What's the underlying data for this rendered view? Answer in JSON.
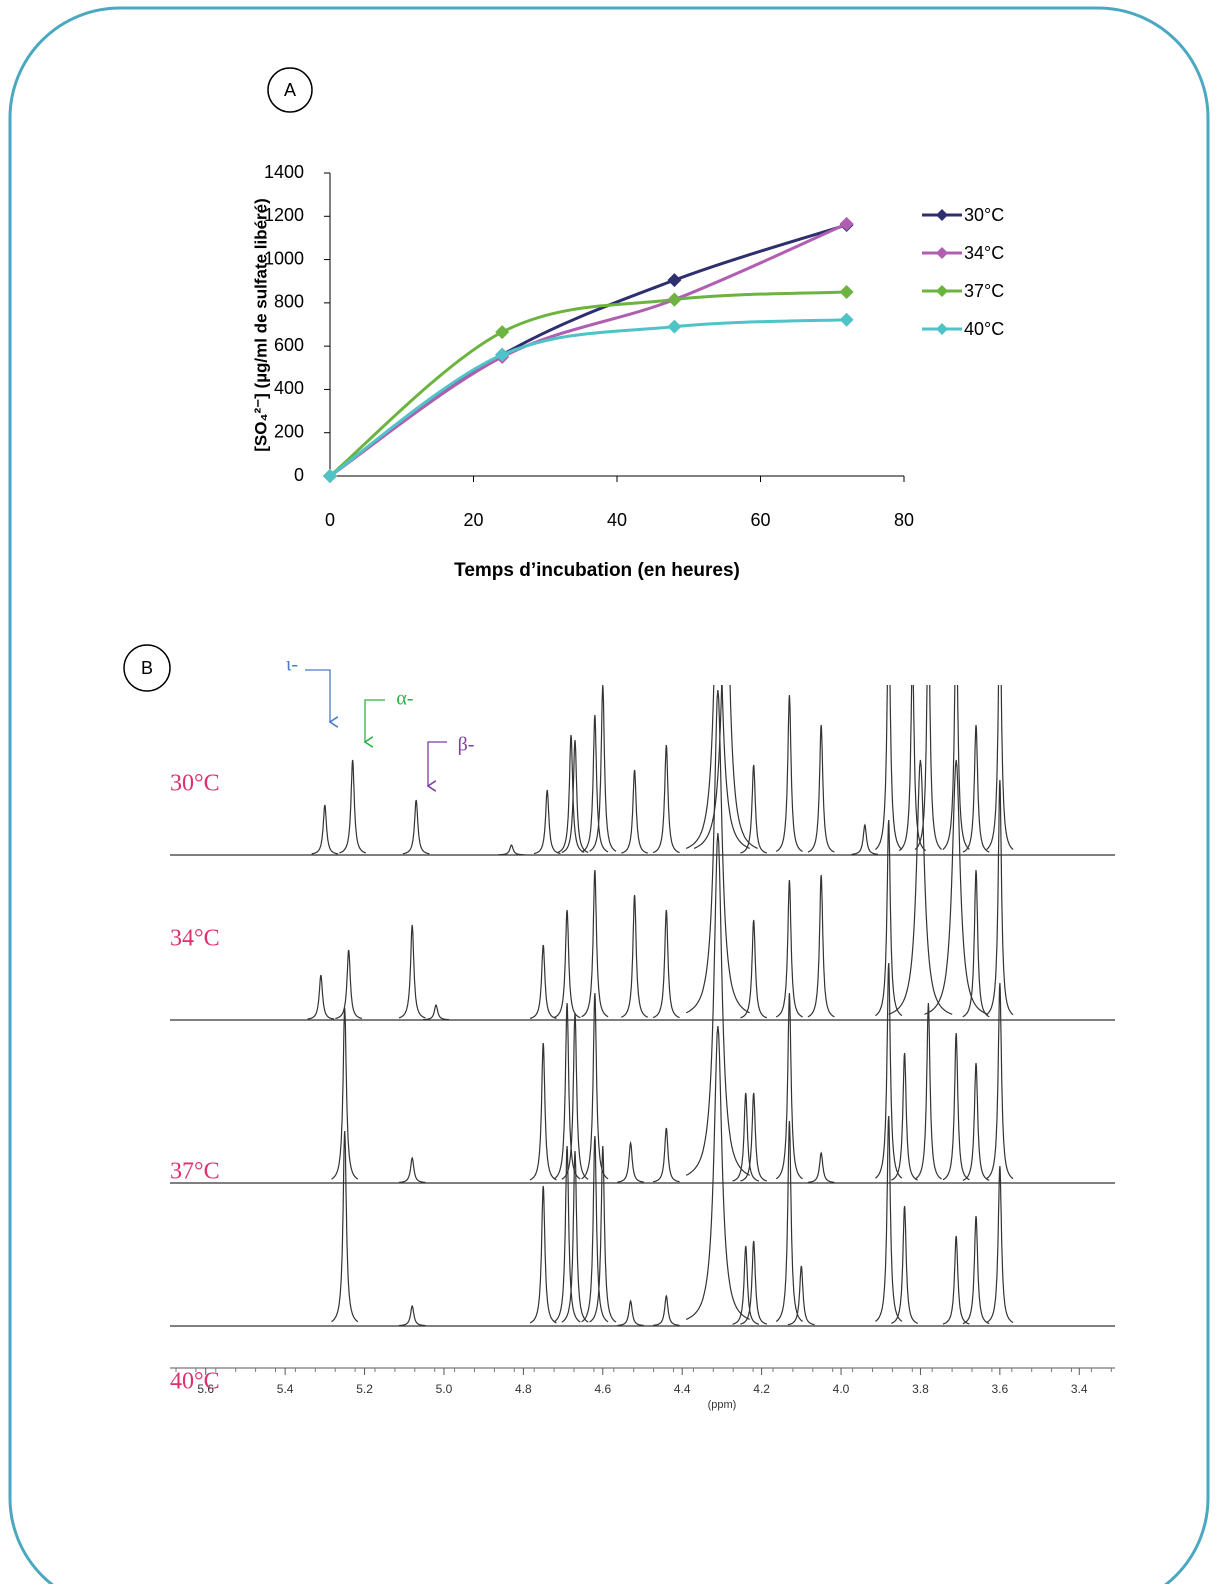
{
  "chart_data": [
    {
      "type": "line",
      "label": "A",
      "xlabel": "Temps d’incubation (en heures)",
      "ylabel": "[SO₄²⁻] (µg/ml de sulfate libéré)",
      "x": [
        0,
        24,
        48,
        72
      ],
      "xlim": [
        0,
        80
      ],
      "xticks": [
        0,
        20,
        40,
        60,
        80
      ],
      "ylim": [
        0,
        1400
      ],
      "yticks": [
        0,
        200,
        400,
        600,
        800,
        1000,
        1200,
        1400
      ],
      "legend": "right",
      "series": [
        {
          "name": "30°C",
          "color": "#2e2f6e",
          "values": [
            0,
            560,
            905,
            1160
          ]
        },
        {
          "name": "34°C",
          "color": "#b05fb0",
          "values": [
            0,
            550,
            815,
            1165
          ]
        },
        {
          "name": "37°C",
          "color": "#6cb33f",
          "values": [
            0,
            665,
            815,
            850
          ]
        },
        {
          "name": "40°C",
          "color": "#4ec3c8",
          "values": [
            0,
            560,
            690,
            722
          ]
        }
      ]
    },
    {
      "type": "spectrum",
      "label": "B",
      "xlabel": "(ppm)",
      "xlim": [
        5.69,
        3.31
      ],
      "xticks": [
        5.6,
        5.4,
        5.2,
        {
          "value": 5.0,
          "label": "5.0"
        },
        4.8,
        4.6,
        4.4,
        4.2,
        {
          "value": 4.0,
          "label": "4.0"
        },
        3.8,
        3.6,
        3.4
      ],
      "label_color": "#e0306a",
      "annotations": [
        {
          "text": "ι-",
          "color": "#4a7ac8"
        },
        {
          "text": "α-",
          "color": "#2db04a"
        },
        {
          "text": "β-",
          "color": "#7b3fa0"
        }
      ],
      "series": [
        {
          "name": "30°C",
          "color": "#333333",
          "x": [
            5.3,
            5.23,
            5.07,
            4.83,
            4.74,
            4.68,
            4.67,
            4.62,
            4.6,
            4.52,
            4.44,
            4.31,
            4.29,
            4.22,
            4.13,
            4.05,
            3.94,
            3.88,
            3.82,
            3.78,
            3.71,
            3.66,
            3.6
          ],
          "values": [
            50,
            95,
            55,
            10,
            65,
            120,
            115,
            140,
            170,
            85,
            110,
            300,
            300,
            90,
            160,
            130,
            30,
            250,
            200,
            250,
            250,
            130,
            250
          ]
        },
        {
          "name": "34°C",
          "color": "#333333",
          "x": [
            5.31,
            5.24,
            5.08,
            5.02,
            4.75,
            4.69,
            4.62,
            4.52,
            4.44,
            4.31,
            4.22,
            4.13,
            4.05,
            3.88,
            3.8,
            3.71,
            3.66,
            3.6
          ],
          "values": [
            45,
            70,
            95,
            15,
            75,
            110,
            150,
            125,
            110,
            330,
            100,
            140,
            145,
            200,
            260,
            260,
            150,
            240
          ]
        },
        {
          "name": "37°C",
          "color": "#333333",
          "x": [
            5.25,
            5.08,
            4.75,
            4.69,
            4.67,
            4.62,
            4.53,
            4.44,
            4.31,
            4.24,
            4.22,
            4.13,
            4.05,
            3.88,
            3.84,
            3.78,
            3.71,
            3.66,
            3.6
          ],
          "values": [
            175,
            25,
            140,
            180,
            170,
            190,
            40,
            55,
            350,
            90,
            90,
            190,
            30,
            220,
            130,
            180,
            150,
            120,
            200
          ]
        },
        {
          "name": "40°C",
          "color": "#333333",
          "x": [
            5.25,
            5.08,
            4.75,
            4.69,
            4.67,
            4.62,
            4.6,
            4.53,
            4.44,
            4.31,
            4.24,
            4.22,
            4.13,
            4.1,
            3.88,
            3.84,
            3.71,
            3.66,
            3.6
          ],
          "values": [
            195,
            20,
            140,
            180,
            175,
            190,
            180,
            25,
            30,
            300,
            80,
            85,
            205,
            60,
            210,
            120,
            90,
            110,
            160
          ]
        }
      ]
    }
  ]
}
